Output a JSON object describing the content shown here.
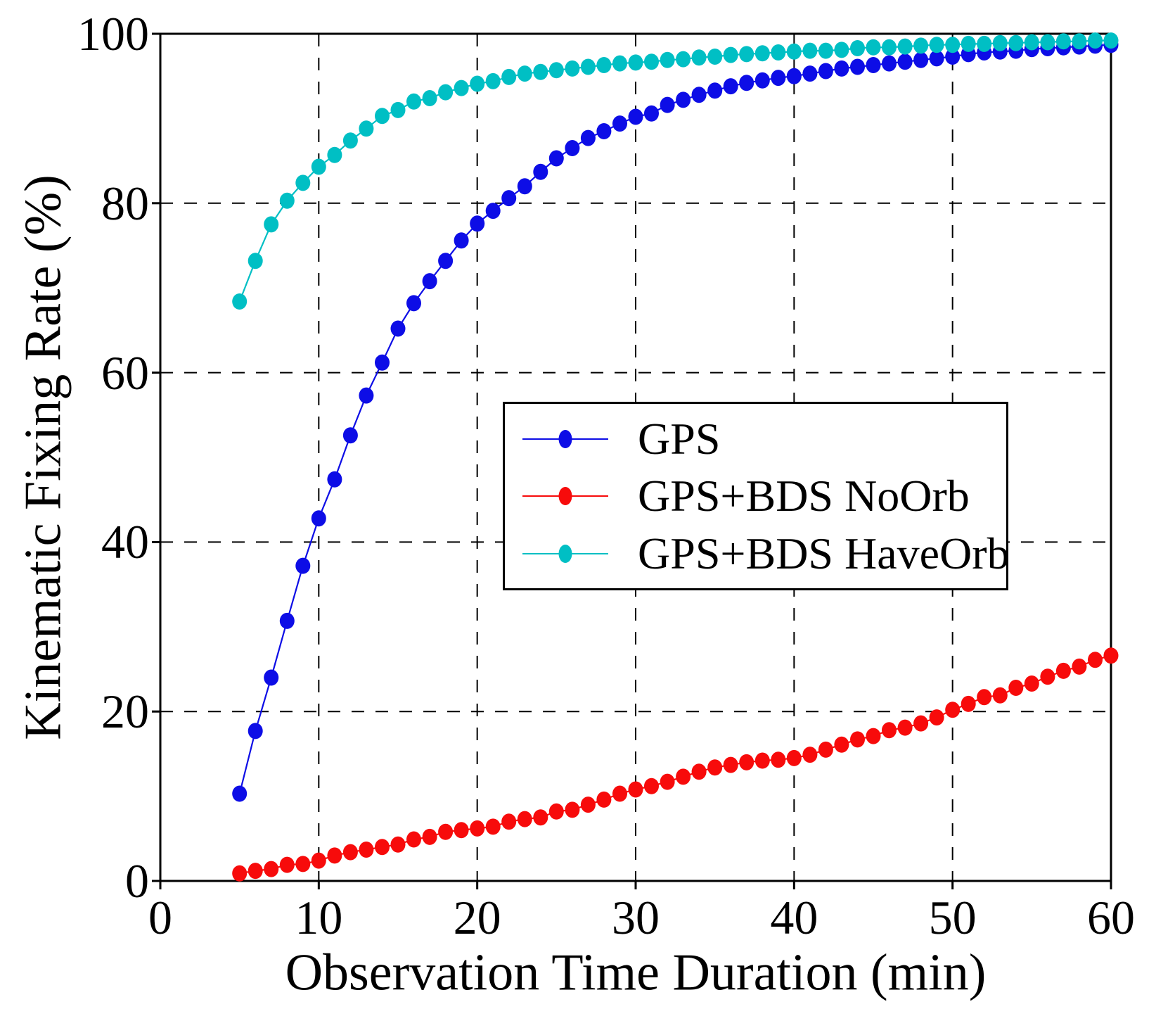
{
  "figure": {
    "background": "#ffffff",
    "frame_color": "#000000",
    "grid_color": "#000000",
    "text_color": "#000000"
  },
  "chart_data": {
    "type": "line",
    "title": "",
    "xlabel": "Observation Time Duration (min)",
    "ylabel": "Kinematic Fixing Rate (%)",
    "xlim": [
      0,
      60
    ],
    "ylim": [
      0,
      100
    ],
    "x_ticks": [
      "0",
      "10",
      "20",
      "30",
      "40",
      "50",
      "60"
    ],
    "x_tick_values": [
      0,
      10,
      20,
      30,
      40,
      50,
      60
    ],
    "y_ticks": [
      "0",
      "20",
      "40",
      "60",
      "80",
      "100"
    ],
    "y_tick_values": [
      0,
      20,
      40,
      60,
      80,
      100
    ],
    "grid": "dashed",
    "legend_position": "inside-center-right",
    "x": [
      5,
      6,
      7,
      8,
      9,
      10,
      11,
      12,
      13,
      14,
      15,
      16,
      17,
      18,
      19,
      20,
      21,
      22,
      23,
      24,
      25,
      26,
      27,
      28,
      29,
      30,
      31,
      32,
      33,
      34,
      35,
      36,
      37,
      38,
      39,
      40,
      41,
      42,
      43,
      44,
      45,
      46,
      47,
      48,
      49,
      50,
      51,
      52,
      53,
      54,
      55,
      56,
      57,
      58,
      59,
      60
    ],
    "series": [
      {
        "name": "GPS",
        "color": "#0d0de6",
        "values": [
          10.3,
          17.7,
          24.0,
          30.7,
          37.2,
          42.8,
          47.4,
          52.6,
          57.3,
          61.2,
          65.2,
          68.2,
          70.8,
          73.2,
          75.6,
          77.6,
          79.1,
          80.6,
          82.0,
          83.7,
          85.3,
          86.5,
          87.7,
          88.5,
          89.4,
          90.2,
          90.6,
          91.6,
          92.2,
          92.8,
          93.3,
          93.8,
          94.2,
          94.5,
          94.8,
          95.0,
          95.3,
          95.6,
          95.9,
          96.1,
          96.3,
          96.5,
          96.7,
          96.9,
          97.1,
          97.3,
          97.6,
          97.8,
          97.9,
          98.0,
          98.2,
          98.3,
          98.4,
          98.5,
          98.6,
          98.7
        ]
      },
      {
        "name": "GPS+BDS NoOrb",
        "color": "#f70b0b",
        "values": [
          0.9,
          1.2,
          1.4,
          1.9,
          2.0,
          2.4,
          3.0,
          3.4,
          3.7,
          4.0,
          4.3,
          4.9,
          5.2,
          5.8,
          6.0,
          6.2,
          6.4,
          7.0,
          7.3,
          7.5,
          8.2,
          8.4,
          9.0,
          9.6,
          10.3,
          10.8,
          11.2,
          11.7,
          12.3,
          12.9,
          13.4,
          13.7,
          14.0,
          14.2,
          14.3,
          14.5,
          14.9,
          15.5,
          16.1,
          16.7,
          17.1,
          17.8,
          18.1,
          18.6,
          19.3,
          20.2,
          20.9,
          21.7,
          21.9,
          22.8,
          23.3,
          24.1,
          24.8,
          25.3,
          26.1,
          26.6
        ]
      },
      {
        "name": "GPS+BDS HaveOrb",
        "color": "#00bfc4",
        "values": [
          68.4,
          73.2,
          77.5,
          80.3,
          82.4,
          84.3,
          85.7,
          87.4,
          88.8,
          90.3,
          91.0,
          92.0,
          92.4,
          93.1,
          93.6,
          94.1,
          94.4,
          94.9,
          95.3,
          95.5,
          95.7,
          95.9,
          96.1,
          96.3,
          96.5,
          96.6,
          96.7,
          96.9,
          97.0,
          97.2,
          97.3,
          97.5,
          97.6,
          97.7,
          97.8,
          97.9,
          98.0,
          98.0,
          98.1,
          98.3,
          98.4,
          98.4,
          98.5,
          98.6,
          98.7,
          98.7,
          98.8,
          98.8,
          98.9,
          98.9,
          99.0,
          99.0,
          99.1,
          99.1,
          99.2,
          99.2
        ]
      }
    ]
  }
}
